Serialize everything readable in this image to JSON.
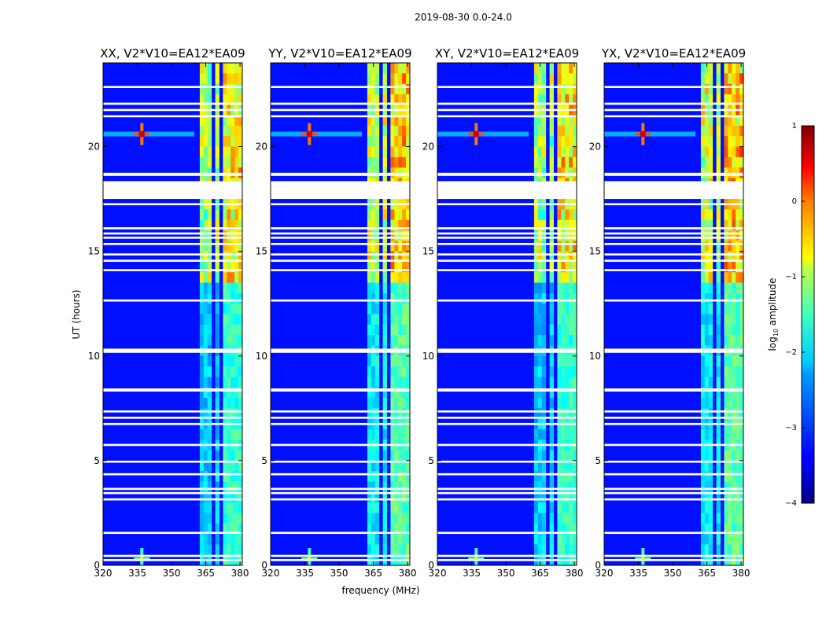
{
  "figure": {
    "title": "2019-08-30 0.0-24.0",
    "xlabel": "frequency (MHz)",
    "ylabel": "UT (hours)"
  },
  "chart_data": {
    "type": "heatmap",
    "title": "2019-08-30 0.0-24.0",
    "xlabel": "frequency (MHz)",
    "ylabel": "UT (hours)",
    "xlim": [
      320,
      381
    ],
    "ylim": [
      0,
      24
    ],
    "xticks": [
      320,
      335,
      350,
      365,
      380
    ],
    "yticks": [
      0,
      5,
      10,
      15,
      20
    ],
    "panels": [
      {
        "title": "XX, V2*V10=EA12*EA09",
        "pol": "XX",
        "show_ylabel": true
      },
      {
        "title": "YY, V2*V10=EA12*EA09",
        "pol": "YY",
        "show_ylabel": false
      },
      {
        "title": "XY, V2*V10=EA12*EA09",
        "pol": "XY",
        "show_ylabel": false
      },
      {
        "title": "YX, V2*V10=EA12*EA09",
        "pol": "YX",
        "show_ylabel": false
      }
    ],
    "colorbar": {
      "label_prefix": "log",
      "label_sub": "10",
      "label_suffix": " amplitude",
      "range": [
        -4,
        1
      ],
      "ticks": [
        "1",
        "0",
        "−1",
        "−2",
        "−3",
        "−4"
      ],
      "tick_values": [
        1,
        0,
        -1,
        -2,
        -3,
        -4
      ],
      "colormap": "jet"
    },
    "background_level": -3.3,
    "rfi_bands_mhz": [
      [
        363,
        367
      ],
      [
        368.5,
        371.5
      ],
      [
        372,
        376
      ],
      [
        376.5,
        378.5
      ],
      [
        379,
        381
      ]
    ],
    "flagged_hours": [
      [
        22.8,
        22.9
      ],
      [
        22.0,
        22.1
      ],
      [
        21.7,
        21.8
      ],
      [
        21.4,
        21.5
      ],
      [
        18.6,
        18.75
      ],
      [
        17.5,
        18.35
      ],
      [
        17.2,
        17.3
      ],
      [
        16.05,
        16.15
      ],
      [
        15.8,
        15.9
      ],
      [
        15.6,
        15.7
      ],
      [
        15.3,
        15.4
      ],
      [
        14.8,
        14.9
      ],
      [
        14.5,
        14.6
      ],
      [
        14.05,
        14.15
      ],
      [
        12.6,
        12.7
      ],
      [
        10.15,
        10.35
      ],
      [
        8.3,
        8.45
      ],
      [
        7.3,
        7.4
      ],
      [
        7.0,
        7.1
      ],
      [
        6.7,
        6.8
      ],
      [
        5.7,
        5.8
      ],
      [
        4.9,
        5.0
      ],
      [
        4.3,
        4.4
      ],
      [
        3.6,
        3.7
      ],
      [
        3.4,
        3.5
      ],
      [
        3.1,
        3.2
      ],
      [
        1.5,
        1.6
      ],
      [
        0.4,
        0.5
      ],
      [
        0.2,
        0.3
      ]
    ],
    "source_bursts": [
      {
        "freq_mhz": 337,
        "ut_hours": 20.6,
        "level": 0.6
      },
      {
        "freq_mhz": 337,
        "ut_hours": 0.3,
        "level": -1.0
      }
    ]
  }
}
